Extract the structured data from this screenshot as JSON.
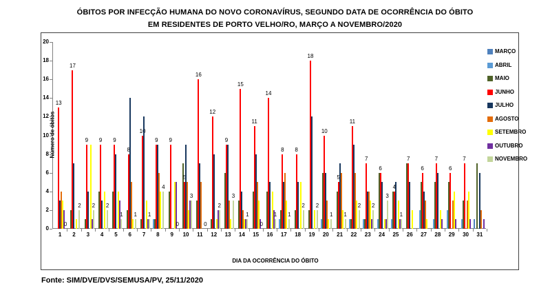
{
  "title": {
    "line1": "ÓBITOS POR INFECÇÃO HUMANA DO NOVO CORONAVÍRUS, SEGUNDO DATA DE OCORRÊNCIA DO ÓBITO",
    "line2": "EM RESIDENTES DE PORTO VELHO/RO, MARÇO A NOVEMBRO/2020"
  },
  "source_note": "Fonte: SIM/DVE/DVS/SEMUSA/PV, 25/11/2020",
  "chart_data": {
    "type": "bar",
    "title": "ÓBITOS POR INFECÇÃO HUMANA DO NOVO CORONAVÍRUS, SEGUNDO DATA DE OCORRÊNCIA DO ÓBITO EM RESIDENTES DE PORTO VELHO/RO, MARÇO A NOVEMBRO/2020",
    "xlabel": "DIA DA OCORRÊNCIA DO ÓBITO",
    "ylabel": "Número de óbitos",
    "ylim": [
      0,
      20
    ],
    "ytick_step": 2,
    "grid": false,
    "legend_position": "right",
    "categories": [
      1,
      2,
      3,
      4,
      5,
      6,
      7,
      8,
      9,
      10,
      11,
      12,
      13,
      14,
      15,
      16,
      17,
      18,
      19,
      20,
      21,
      22,
      23,
      24,
      25,
      26,
      27,
      28,
      29,
      30,
      31
    ],
    "series": [
      {
        "name": "MARÇO",
        "color": "#4F81BD",
        "show_labels": false,
        "values": [
          0,
          0,
          0,
          0,
          0,
          0,
          0,
          0,
          0,
          0,
          0,
          0,
          0,
          0,
          0,
          0,
          0,
          0,
          0,
          0,
          0,
          0,
          0,
          0,
          0,
          0,
          0,
          0,
          0,
          0,
          1
        ]
      },
      {
        "name": "ABRIL",
        "color": "#5B9BD5",
        "show_labels": false,
        "values": [
          0,
          0,
          0,
          0,
          0,
          0,
          0,
          1,
          0,
          0,
          0,
          0,
          0,
          0,
          0,
          0,
          1,
          0,
          0,
          1,
          0,
          1,
          1,
          1,
          1,
          0,
          2,
          1,
          2,
          1,
          0
        ]
      },
      {
        "name": "MAIO",
        "color": "#4F6228",
        "show_labels": false,
        "values": [
          0,
          2,
          1,
          4,
          4,
          2,
          1,
          1,
          4,
          7,
          3,
          1,
          6,
          3,
          4,
          4,
          2,
          2,
          2,
          6,
          4,
          1,
          1,
          6,
          4,
          7,
          5,
          5,
          5,
          3,
          7
        ]
      },
      {
        "name": "JUNHO",
        "color": "#FF0000",
        "show_labels": true,
        "values": [
          13,
          17,
          9,
          9,
          9,
          8,
          10,
          9,
          9,
          5,
          16,
          12,
          9,
          15,
          11,
          14,
          8,
          8,
          18,
          10,
          5,
          11,
          7,
          6,
          4,
          7,
          6,
          7,
          6,
          7,
          null
        ]
      },
      {
        "name": "JULHO",
        "color": "#17375E",
        "show_labels": false,
        "values": [
          3,
          7,
          4,
          3,
          8,
          14,
          12,
          9,
          0,
          9,
          7,
          8,
          9,
          4,
          8,
          5,
          5,
          5,
          12,
          6,
          7,
          9,
          4,
          5,
          5,
          5,
          4,
          6,
          0,
          0,
          6
        ]
      },
      {
        "name": "AGOSTO",
        "color": "#E36C0A",
        "show_labels": false,
        "values": [
          4,
          0,
          0,
          0,
          0,
          5,
          0,
          6,
          0,
          5,
          5,
          0,
          3,
          2,
          5,
          0,
          6,
          0,
          0,
          3,
          6,
          6,
          4,
          0,
          0,
          0,
          3,
          0,
          3,
          3,
          2
        ]
      },
      {
        "name": "SETEMBRO",
        "color": "#FFFF00",
        "show_labels": false,
        "values": [
          3,
          1,
          9,
          4,
          4,
          1,
          3,
          4,
          5,
          2,
          0,
          1,
          1,
          1,
          3,
          4,
          3,
          5,
          2,
          1,
          2,
          3,
          3,
          1,
          3,
          2,
          1,
          2,
          4,
          4,
          0
        ]
      },
      {
        "name": "OUTUBRO",
        "color": "#7030A0",
        "show_labels": false,
        "values": [
          2,
          0,
          1,
          0,
          3,
          0,
          1,
          0,
          5,
          3,
          0,
          2,
          0,
          1,
          1,
          2,
          0,
          0,
          0,
          0,
          0,
          0,
          1,
          1,
          1,
          0,
          0,
          1,
          1,
          1,
          1
        ]
      },
      {
        "name": "NOVEMBRO",
        "color": "#C3D69B",
        "show_labels": true,
        "values": [
          0,
          2,
          2,
          2,
          1,
          1,
          1,
          4,
          0,
          3,
          0,
          2,
          3,
          1,
          0,
          1,
          1,
          2,
          2,
          1,
          1,
          2,
          2,
          3,
          1,
          null,
          null,
          null,
          null,
          null,
          null
        ]
      }
    ]
  }
}
